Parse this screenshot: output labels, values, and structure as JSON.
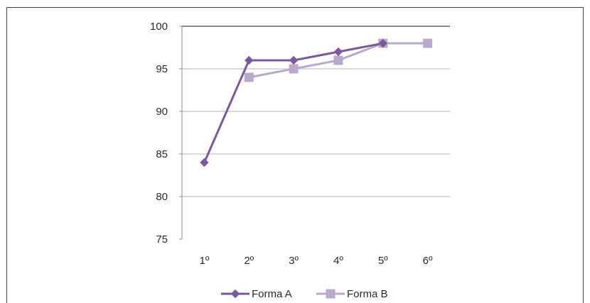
{
  "chart_data": {
    "type": "line",
    "title": "",
    "xlabel": "",
    "ylabel": "",
    "categories": [
      "1º",
      "2º",
      "3º",
      "4º",
      "5º",
      "6º"
    ],
    "ylim": [
      75,
      100
    ],
    "yticks": [
      75,
      80,
      85,
      90,
      95,
      100
    ],
    "grid": true,
    "legend_position": "bottom",
    "series": [
      {
        "name": "Forma A",
        "values": [
          84,
          96,
          96,
          97,
          98,
          null
        ],
        "color": "#7b5a9c",
        "marker": "diamond"
      },
      {
        "name": "Forma B",
        "values": [
          null,
          94,
          95,
          96,
          98,
          98
        ],
        "color": "#b9aacb",
        "marker": "square"
      }
    ]
  }
}
